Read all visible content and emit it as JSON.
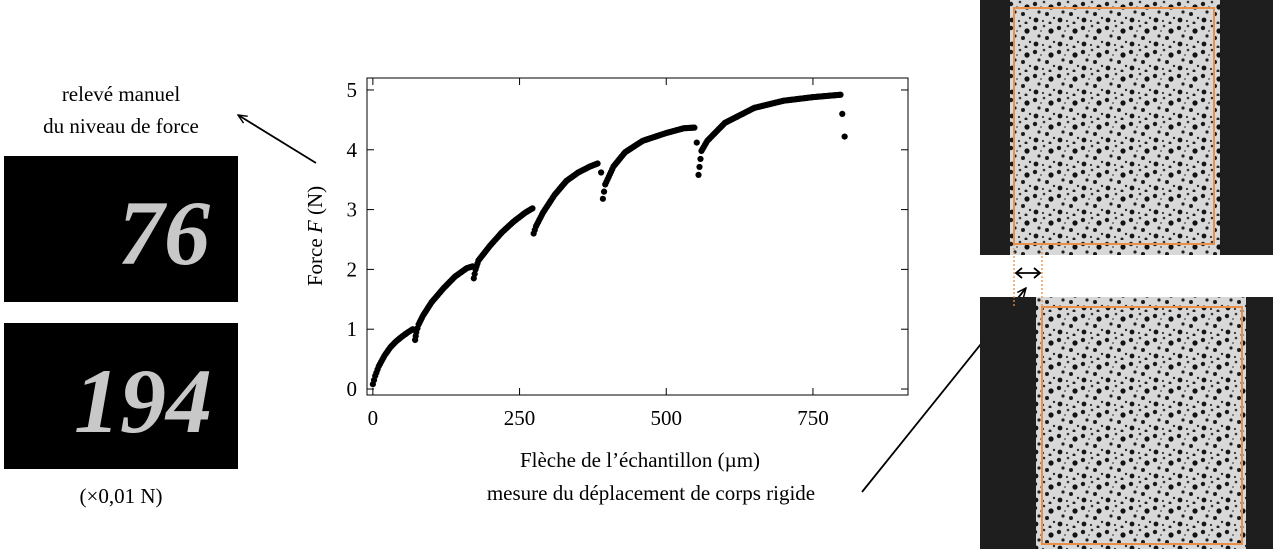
{
  "left_panel": {
    "caption_line1": "relevé manuel",
    "caption_line2": "du niveau de force",
    "display_top": "76",
    "display_bottom": "194",
    "unit_note": "(×0,01 N)"
  },
  "bottom_note": "mesure du déplacement de corps rigide",
  "colors": {
    "roi_box": "#e8904a",
    "display_digits": "#c8c8c8",
    "display_bg": "#000000",
    "data_points": "#000000"
  },
  "chart_data": {
    "type": "scatter",
    "title": "",
    "xlabel": "Flèche de l’échantillon (µm)",
    "ylabel_prefix": "Force ",
    "ylabel_var": "F",
    "ylabel_suffix": " (N)",
    "xlim": [
      -10,
      912
    ],
    "ylim": [
      -0.1,
      5.2
    ],
    "xticks": [
      0,
      250,
      500,
      750
    ],
    "yticks": [
      0,
      1,
      2,
      3,
      4,
      5
    ],
    "grid": false,
    "series": [
      {
        "x": [
          0,
          4,
          10,
          20,
          30,
          40,
          50,
          60,
          68,
          72,
          74,
          78,
          85,
          100,
          120,
          140,
          160,
          170,
          172,
          175,
          180,
          200,
          220,
          240,
          260,
          272,
          274,
          278,
          290,
          310,
          330,
          350,
          370,
          383,
          389,
          392,
          396,
          410,
          430,
          460,
          500,
          530,
          548,
          552,
          555,
          560,
          570,
          600,
          650,
          700,
          750,
          797,
          800,
          804
        ],
        "y": [
          0.08,
          0.22,
          0.38,
          0.56,
          0.7,
          0.8,
          0.88,
          0.95,
          1.0,
          0.82,
          0.95,
          1.08,
          1.22,
          1.45,
          1.68,
          1.88,
          2.02,
          2.05,
          1.85,
          2.0,
          2.15,
          2.4,
          2.62,
          2.8,
          2.95,
          3.02,
          2.6,
          2.72,
          2.95,
          3.25,
          3.48,
          3.62,
          3.72,
          3.77,
          3.62,
          3.18,
          3.42,
          3.72,
          3.96,
          4.15,
          4.28,
          4.36,
          4.37,
          4.12,
          3.58,
          3.98,
          4.15,
          4.45,
          4.7,
          4.82,
          4.88,
          4.92,
          4.6,
          4.22
        ]
      }
    ]
  }
}
